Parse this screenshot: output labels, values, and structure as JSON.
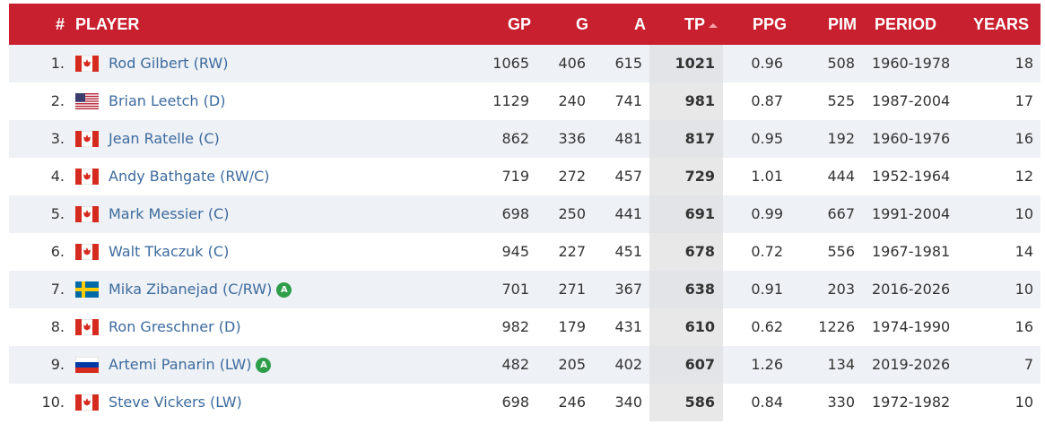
{
  "table": {
    "columns": [
      "#",
      "PLAYER",
      "GP",
      "G",
      "A",
      "TP",
      "PPG",
      "PIM",
      "PERIOD",
      "YEARS"
    ],
    "rows": [
      {
        "rank": "1.",
        "player": "Rod Gilbert (RW)",
        "gp": 1065,
        "g": 406,
        "a": 615,
        "tp": 1021,
        "ppg": 0.96,
        "pim": 508,
        "period": "1960-1978",
        "years": 18
      },
      {
        "rank": "2.",
        "player": "Brian Leetch (D)",
        "gp": 1129,
        "g": 240,
        "a": 741,
        "tp": 981,
        "ppg": 0.87,
        "pim": 525,
        "period": "1987-2004",
        "years": 17
      },
      {
        "rank": "3.",
        "player": "Jean Ratelle (C)",
        "gp": 862,
        "g": 336,
        "a": 481,
        "tp": 817,
        "ppg": 0.95,
        "pim": 192,
        "period": "1960-1976",
        "years": 16
      },
      {
        "rank": "4.",
        "player": "Andy Bathgate (RW/C)",
        "gp": 719,
        "g": 272,
        "a": 457,
        "tp": 729,
        "ppg": 1.01,
        "pim": 444,
        "period": "1952-1964",
        "years": 12
      },
      {
        "rank": "5.",
        "player": "Mark Messier (C)",
        "gp": 698,
        "g": 250,
        "a": 441,
        "tp": 691,
        "ppg": 0.99,
        "pim": 667,
        "period": "1991-2004",
        "years": 10
      },
      {
        "rank": "6.",
        "player": "Walt Tkaczuk (C)",
        "gp": 945,
        "g": 227,
        "a": 451,
        "tp": 678,
        "ppg": 0.72,
        "pim": 556,
        "period": "1967-1981",
        "years": 14
      },
      {
        "rank": "7.",
        "player": "Mika Zibanejad (C/RW)",
        "badge": "A",
        "gp": 701,
        "g": 271,
        "a": 367,
        "tp": 638,
        "ppg": 0.91,
        "pim": 203,
        "period": "2016-2026",
        "years": 10
      },
      {
        "rank": "8.",
        "player": "Ron Greschner (D)",
        "gp": 982,
        "g": 179,
        "a": 431,
        "tp": 610,
        "ppg": 0.62,
        "pim": 1226,
        "period": "1974-1990",
        "years": 16
      },
      {
        "rank": "9.",
        "player": "Artemi Panarin (LW)",
        "badge": "A",
        "gp": 482,
        "g": 205,
        "a": 402,
        "tp": 607,
        "ppg": 1.26,
        "pim": 134,
        "period": "2019-2026",
        "years": 7
      },
      {
        "rank": "10.",
        "player": "Steve Vickers (LW)",
        "gp": 698,
        "g": 246,
        "a": 340,
        "tp": 586,
        "ppg": 0.84,
        "pim": 330,
        "period": "1972-1982",
        "years": 10
      }
    ]
  }
}
